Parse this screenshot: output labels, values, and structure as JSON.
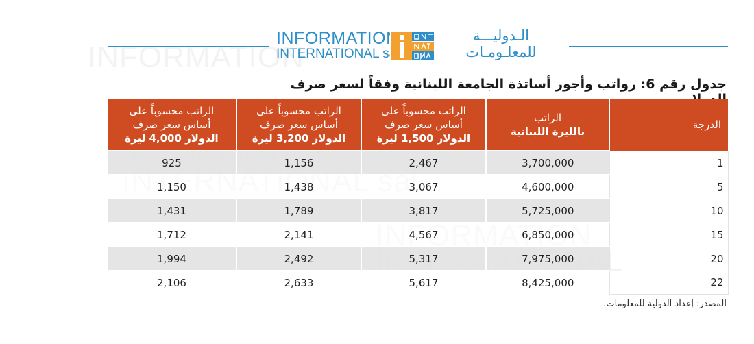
{
  "logo": {
    "en_line1": "INFORMATION",
    "en_line2": "INTERNATIONAL sal",
    "ar_line1": "الـدوليـــة",
    "ar_line2": "للمعلـومـات",
    "mark_text": "INFO NAT ONAL"
  },
  "title": "جدول رقم 6: رواتب وأجور أساتذة الجامعة اللبنانية وفقاً لسعر صرف الدولار.",
  "table": {
    "headers": [
      {
        "line1": "الدرجة",
        "line2": "",
        "line3": ""
      },
      {
        "line1": "الراتب",
        "line2": "",
        "line3": "بالليرة اللبنانية"
      },
      {
        "line1": "الراتب محسوباً على",
        "line2": "أساس سعر صرف",
        "line3": "الدولار 1,500 ليرة"
      },
      {
        "line1": "الراتب محسوباً على",
        "line2": "أساس سعر صرف",
        "line3": "الدولار 3,200 ليرة"
      },
      {
        "line1": "الراتب محسوباً على",
        "line2": "أساس سعر صرف",
        "line3": "الدولار 4,000 ليرة"
      }
    ],
    "rows": [
      [
        "1",
        "3,700,000",
        "2,467",
        "1,156",
        "925"
      ],
      [
        "5",
        "4,600,000",
        "3,067",
        "1,438",
        "1,150"
      ],
      [
        "10",
        "5,725,000",
        "3,817",
        "1,789",
        "1,431"
      ],
      [
        "15",
        "6,850,000",
        "4,567",
        "2,141",
        "1,712"
      ],
      [
        "20",
        "7,975,000",
        "5,317",
        "2,492",
        "1,994"
      ],
      [
        "22",
        "8,425,000",
        "5,617",
        "2,633",
        "2,106"
      ]
    ]
  },
  "source": "المصدر: إعداد الدولية للمعلومات.",
  "colors": {
    "header_bg": "#cf4c22",
    "brand_blue": "#2e8fc8",
    "brand_orange": "#f2a02f",
    "row_shade": "#e0e0e0"
  }
}
